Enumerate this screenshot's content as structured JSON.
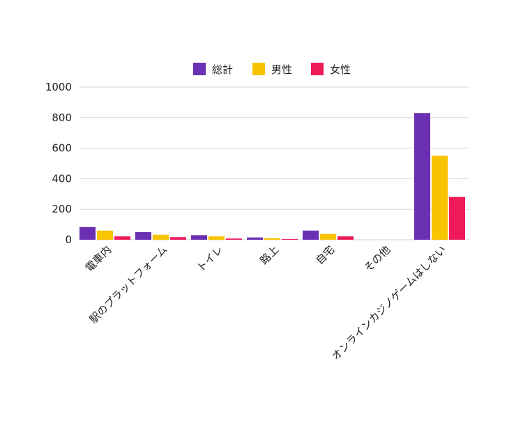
{
  "chart_data": {
    "type": "bar",
    "categories": [
      "電車内",
      "駅のプラットフォーム",
      "トイレ",
      "路上",
      "自宅",
      "その他",
      "オンラインカジノゲームはしない"
    ],
    "series": [
      {
        "name": "総計",
        "color": "#6a2fb3",
        "values": [
          83,
          50,
          30,
          15,
          60,
          0,
          830
        ]
      },
      {
        "name": "男性",
        "color": "#f8c300",
        "values": [
          60,
          33,
          22,
          10,
          38,
          0,
          550
        ]
      },
      {
        "name": "女性",
        "color": "#ef1a5a",
        "values": [
          22,
          17,
          8,
          5,
          22,
          0,
          280
        ]
      }
    ],
    "yticks": [
      0,
      200,
      400,
      600,
      800,
      1000
    ],
    "ylim": [
      0,
      1000
    ],
    "grid": true,
    "legend_position": "top-center"
  }
}
